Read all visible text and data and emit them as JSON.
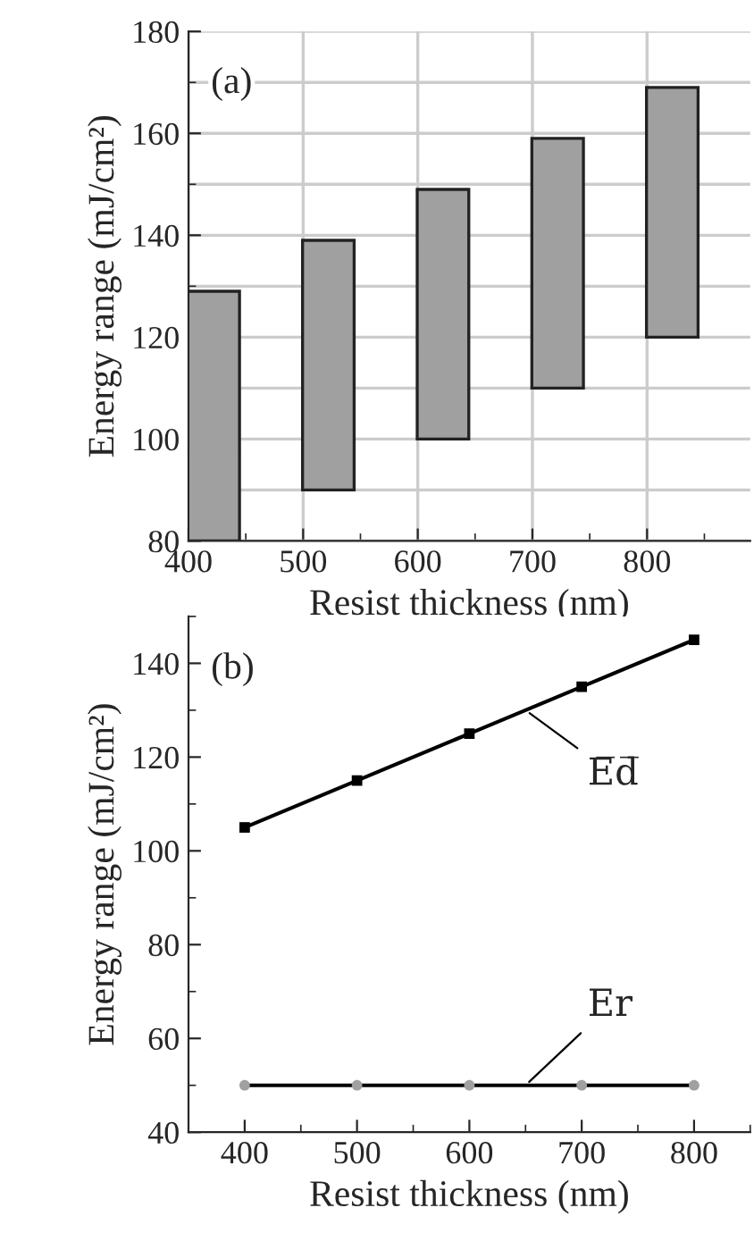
{
  "chart_data": [
    {
      "type": "bar",
      "xlabel": "Resist thickness (nm)",
      "ylabel": "Energy range (mJ/cm²)",
      "annotations": [
        "(a)"
      ],
      "x": [
        422,
        522,
        622,
        722,
        822
      ],
      "color": "#a0a0a0",
      "values": [
        49,
        49,
        49,
        49,
        49
      ],
      "base": [
        80,
        90,
        100,
        110,
        120
      ],
      "xlim": [
        400,
        890
      ],
      "xticks": [
        400,
        500,
        600,
        700,
        800
      ],
      "ylim": [
        80,
        180
      ],
      "yticks": [
        80,
        100,
        120,
        140,
        160,
        180
      ],
      "grid": true
    },
    {
      "type": "line",
      "xlabel": "Resist thickness (nm)",
      "ylabel": "Energy range (mJ/cm²)",
      "annotations": [
        "(b)"
      ],
      "x": [
        400,
        500,
        600,
        700,
        800
      ],
      "series": [
        {
          "name": "E̅d̅",
          "color": "#000000",
          "marker": "square",
          "values": [
            105,
            115,
            125,
            135,
            145
          ]
        },
        {
          "name": "Er",
          "color": "#000000",
          "colors": [
            "#a0a0a0",
            "#a0a0a0",
            "#a0a0a0",
            "#a0a0a0",
            "#a0a0a0"
          ],
          "marker": "circle",
          "values": [
            50,
            50,
            50,
            50,
            50
          ]
        }
      ],
      "xlim": [
        350,
        850
      ],
      "xticks": [
        400,
        500,
        600,
        700,
        800
      ],
      "ylim": [
        40,
        150
      ],
      "yticks": [
        40,
        60,
        80,
        100,
        120,
        140
      ],
      "grid": false
    }
  ]
}
